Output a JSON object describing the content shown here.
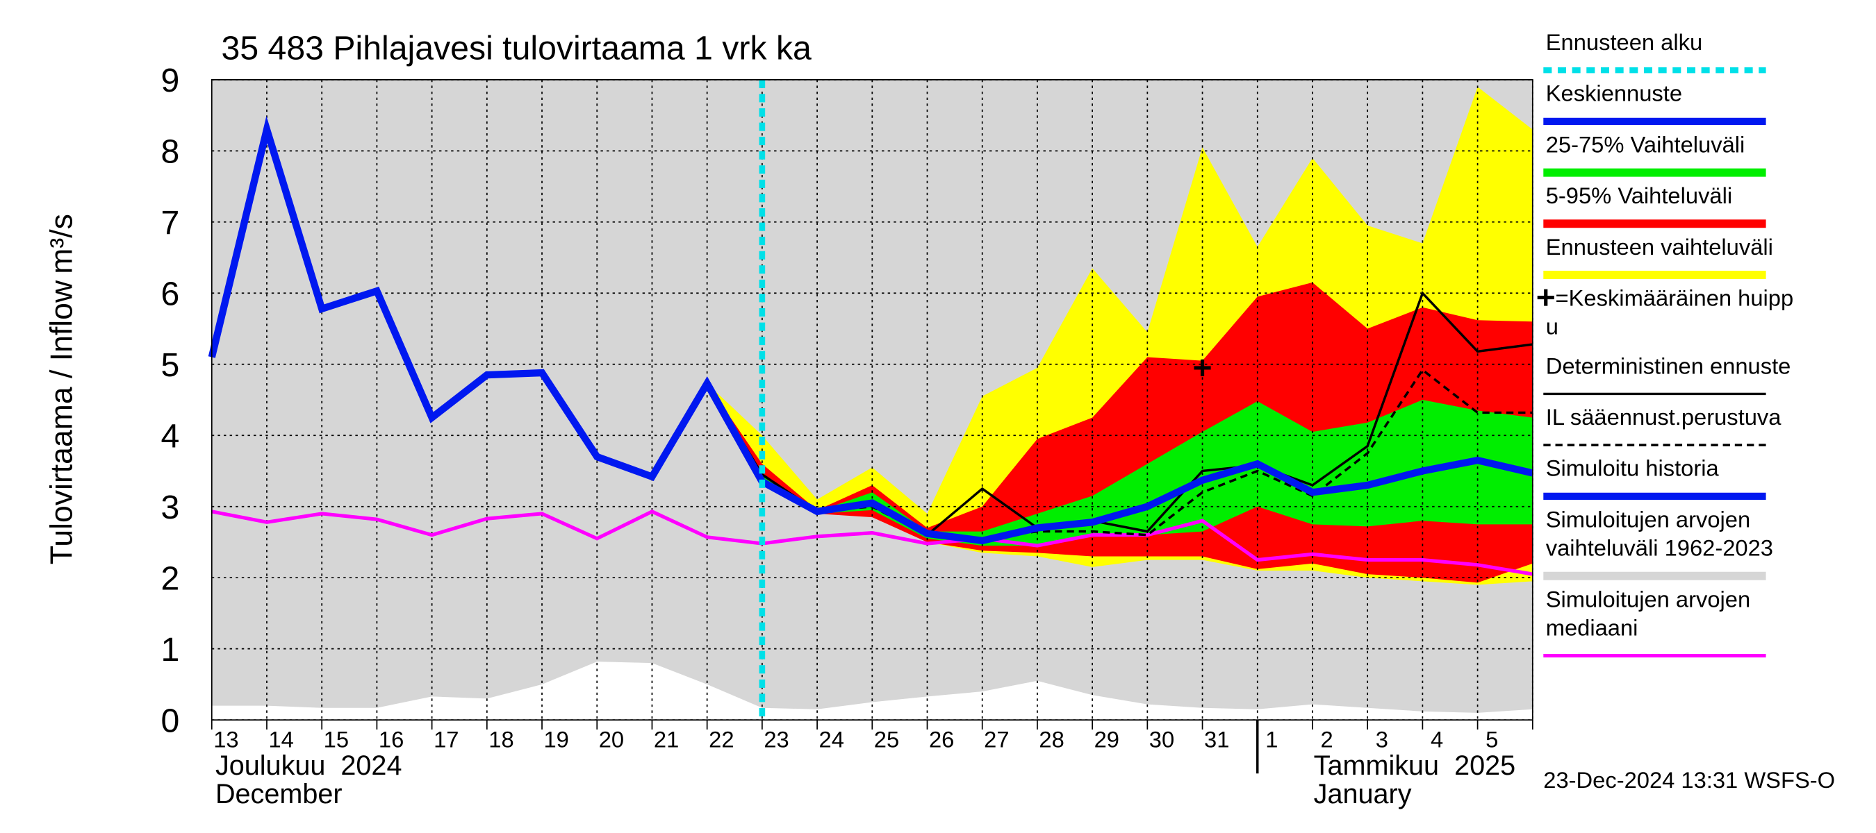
{
  "chart_data": {
    "type": "line",
    "title": "35 483 Pihlajavesi tulovirtaama 1 vrk ka",
    "ylabel": "Tulovirtaama / Inflow",
    "yunit": "m³/s",
    "categories": [
      "13",
      "14",
      "15",
      "16",
      "17",
      "18",
      "19",
      "20",
      "21",
      "22",
      "23",
      "24",
      "25",
      "26",
      "27",
      "28",
      "29",
      "30",
      "31",
      "1",
      "2",
      "3",
      "4",
      "5",
      null
    ],
    "months": [
      {
        "lines": [
          "Joulukuu  2024",
          "December"
        ],
        "x": 0
      },
      {
        "lines": [
          "Tammikuu  2025",
          "January"
        ],
        "x": 19
      }
    ],
    "footer": "23-Dec-2024 13:31 WSFS-O",
    "ylim": [
      0,
      9
    ],
    "yticks": [
      0,
      1,
      2,
      3,
      4,
      5,
      6,
      7,
      8,
      9
    ],
    "grid": true,
    "series": [
      {
        "name": [
          "Ennusteen alku"
        ],
        "kind": "vline",
        "color": "#00e0e8",
        "linewidth": 5,
        "dash": "7 5",
        "x": 10
      },
      {
        "name": [
          "Keskiennuste"
        ],
        "kind": "line",
        "color": "#0018f0",
        "linewidth": 6,
        "values": [
          null,
          null,
          null,
          null,
          null,
          null,
          null,
          null,
          null,
          4.73,
          3.35,
          2.93,
          3.05,
          2.62,
          2.52,
          2.7,
          2.78,
          3.0,
          3.37,
          3.6,
          3.2,
          3.3,
          3.5,
          3.65,
          3.47
        ]
      },
      {
        "name": [
          "25-75% Vaihteluväli"
        ],
        "kind": "band",
        "color": "#00ee00",
        "lower": [
          null,
          null,
          null,
          null,
          null,
          null,
          null,
          null,
          null,
          4.73,
          3.4,
          2.9,
          2.95,
          2.55,
          2.45,
          2.45,
          2.6,
          2.6,
          2.65,
          3.0,
          2.75,
          2.72,
          2.8,
          2.75,
          2.75
        ],
        "upper": [
          null,
          null,
          null,
          null,
          null,
          null,
          null,
          null,
          null,
          4.73,
          3.45,
          2.93,
          3.2,
          2.65,
          2.65,
          2.9,
          3.15,
          3.6,
          4.05,
          4.48,
          4.05,
          4.18,
          4.5,
          4.35,
          4.25
        ]
      },
      {
        "name": [
          "5-95% Vaihteluväli"
        ],
        "kind": "band",
        "color": "#ff0000",
        "lower": [
          null,
          null,
          null,
          null,
          null,
          null,
          null,
          null,
          null,
          4.73,
          3.3,
          2.9,
          2.85,
          2.5,
          2.38,
          2.35,
          2.3,
          2.3,
          2.3,
          2.12,
          2.2,
          2.05,
          2.0,
          1.93,
          2.2
        ],
        "upper": [
          null,
          null,
          null,
          null,
          null,
          null,
          null,
          null,
          null,
          4.73,
          3.6,
          2.95,
          3.3,
          2.7,
          3.0,
          3.95,
          4.25,
          5.1,
          5.05,
          5.95,
          6.15,
          5.5,
          5.8,
          5.62,
          5.6
        ]
      },
      {
        "name": [
          "Ennusteen vaihteluväli"
        ],
        "kind": "band",
        "color": "#ffff00",
        "lower": [
          null,
          null,
          null,
          null,
          null,
          null,
          null,
          null,
          null,
          4.73,
          3.3,
          2.9,
          2.9,
          2.5,
          2.35,
          2.3,
          2.15,
          2.25,
          2.25,
          2.1,
          2.1,
          2.0,
          1.95,
          1.9,
          1.95
        ],
        "upper": [
          null,
          null,
          null,
          null,
          null,
          null,
          null,
          null,
          null,
          4.73,
          4.0,
          3.1,
          3.55,
          2.9,
          4.55,
          4.95,
          6.35,
          5.45,
          8.05,
          6.65,
          7.9,
          6.95,
          6.7,
          8.9,
          8.3
        ]
      },
      {
        "name": [
          "=Keskimääräinen huipp",
          "u"
        ],
        "kind": "marker",
        "color": "#000000",
        "values": [
          null,
          null,
          null,
          null,
          null,
          null,
          null,
          null,
          null,
          null,
          null,
          null,
          null,
          null,
          null,
          null,
          null,
          null,
          4.95,
          null,
          null,
          null,
          null,
          null,
          null
        ]
      },
      {
        "name": [
          "Deterministinen ennuste"
        ],
        "kind": "line",
        "color": "#000000",
        "linewidth": 2,
        "values": [
          null,
          null,
          null,
          null,
          null,
          null,
          null,
          null,
          null,
          4.73,
          3.45,
          2.93,
          3.05,
          2.6,
          3.25,
          2.7,
          2.8,
          2.65,
          3.5,
          3.58,
          3.3,
          3.85,
          6.0,
          5.18,
          5.28
        ]
      },
      {
        "name": [
          "IL sääennust.perustuva"
        ],
        "kind": "line",
        "color": "#000000",
        "linewidth": 2,
        "dash": "6 4",
        "values": [
          null,
          null,
          null,
          null,
          null,
          null,
          null,
          null,
          null,
          4.73,
          3.45,
          2.93,
          3.0,
          2.6,
          2.55,
          2.65,
          2.65,
          2.6,
          3.2,
          3.5,
          3.15,
          3.75,
          4.92,
          4.32,
          4.32
        ]
      },
      {
        "name": [
          "Simuloitu historia"
        ],
        "kind": "line",
        "color": "#0018f0",
        "linewidth": 6,
        "values": [
          5.1,
          8.3,
          5.78,
          6.03,
          4.25,
          4.85,
          4.88,
          3.7,
          3.42,
          4.73,
          3.35,
          null,
          null,
          null,
          null,
          null,
          null,
          null,
          null,
          null,
          null,
          null,
          null,
          null,
          null
        ]
      },
      {
        "name": [
          "Simuloitujen arvojen",
          "vaihteluväli 1962-2023"
        ],
        "kind": "band",
        "color": "#d6d6d6",
        "lower": [
          0.2,
          0.2,
          0.17,
          0.17,
          0.33,
          0.3,
          0.5,
          0.82,
          0.8,
          0.5,
          0.17,
          0.15,
          0.25,
          0.33,
          0.4,
          0.55,
          0.35,
          0.22,
          0.17,
          0.15,
          0.22,
          0.17,
          0.12,
          0.1,
          0.15
        ],
        "upper": [
          9,
          9,
          9,
          9,
          9,
          9,
          9,
          9,
          9,
          9,
          9,
          9,
          9,
          9,
          9,
          9,
          9,
          9,
          9,
          9,
          9,
          9,
          9,
          9,
          9
        ]
      },
      {
        "name": [
          "Simuloitujen arvojen",
          "mediaani"
        ],
        "kind": "line",
        "color": "#ff00ff",
        "linewidth": 3,
        "values": [
          2.93,
          2.78,
          2.9,
          2.82,
          2.6,
          2.83,
          2.9,
          2.55,
          2.93,
          2.57,
          2.48,
          2.58,
          2.63,
          2.48,
          2.55,
          2.45,
          2.6,
          2.6,
          2.8,
          2.25,
          2.33,
          2.25,
          2.25,
          2.18,
          2.05
        ]
      }
    ]
  }
}
